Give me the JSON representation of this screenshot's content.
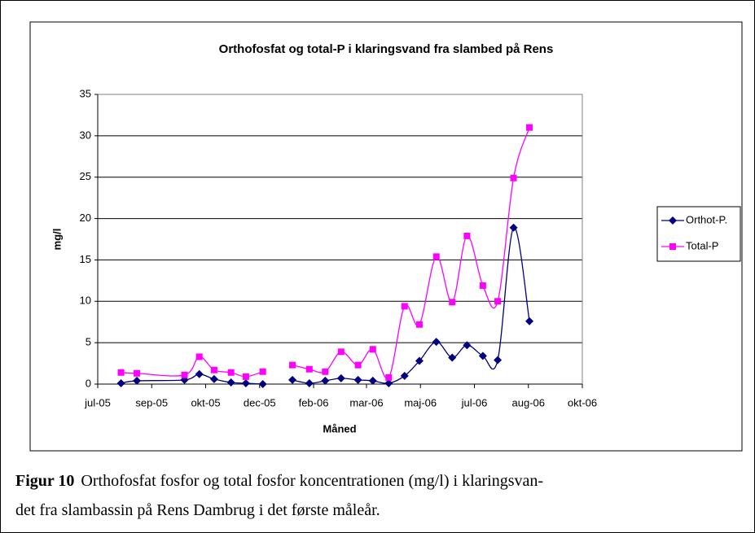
{
  "chart_data": {
    "type": "line",
    "title": "Orthofosfat og total-P i klaringsvand fra slambed på Rens",
    "x_label": "Måned",
    "y_label": "mg/l",
    "x": [
      "2005-08-11",
      "2005-08-26",
      "2005-10-10",
      "2005-10-24",
      "2005-11-07",
      "2005-11-23",
      "2005-12-07",
      "2005-12-23",
      null,
      "2006-01-20",
      "2006-02-05",
      "2006-02-20",
      "2006-03-07",
      "2006-03-23",
      "2006-04-06",
      "2006-04-21",
      "2006-05-06",
      "2006-05-20",
      "2006-06-05",
      "2006-06-20",
      "2006-07-04",
      "2006-07-19",
      "2006-08-02",
      "2006-08-17",
      "2006-09-01"
    ],
    "series": [
      {
        "name": "Orthot-P.",
        "color": "#000080",
        "marker": "diamond",
        "values": [
          0.1,
          0.4,
          0.5,
          1.2,
          0.6,
          0.2,
          0.1,
          0,
          null,
          0.5,
          0.1,
          0.4,
          0.7,
          0.5,
          0.4,
          0.1,
          1.0,
          2.8,
          5.1,
          3.2,
          4.7,
          3.4,
          2.9,
          18.9,
          7.6
        ]
      },
      {
        "name": "Total-P",
        "color": "#ff00ff",
        "marker": "square",
        "values": [
          1.4,
          1.3,
          1.1,
          3.3,
          1.7,
          1.4,
          0.9,
          1.5,
          null,
          2.3,
          1.8,
          1.5,
          3.9,
          2.3,
          4.2,
          0.8,
          9.4,
          7.2,
          15.4,
          9.9,
          17.9,
          11.9,
          10.0,
          24.9,
          31.0
        ]
      }
    ],
    "xlim": [
      "2005-07-20",
      "2006-10-21"
    ],
    "xticks": [
      {
        "value": "2005-07-20",
        "label": "jul-05"
      },
      {
        "value": "2005-09-09",
        "label": "sep-05"
      },
      {
        "value": "2005-10-30",
        "label": "okt-05"
      },
      {
        "value": "2005-12-20",
        "label": "dec-05"
      },
      {
        "value": "2006-02-09",
        "label": "feb-06"
      },
      {
        "value": "2006-03-31",
        "label": "mar-06"
      },
      {
        "value": "2006-05-21",
        "label": "maj-06"
      },
      {
        "value": "2006-07-11",
        "label": "jul-06"
      },
      {
        "value": "2006-08-31",
        "label": "aug-06"
      },
      {
        "value": "2006-10-21",
        "label": "okt-06"
      }
    ],
    "ylim": [
      0,
      35
    ],
    "yticks": [
      0,
      5,
      10,
      15,
      20,
      25,
      30,
      35
    ],
    "grid": true,
    "smooth": true,
    "legend": "right"
  },
  "caption": {
    "label": "Figur 10",
    "lines": [
      "Orthofosfat fosfor og total fosfor koncentrationen (mg/l) i klaringsvan-",
      "det fra slambassin på Rens Dambrug i det første måleår."
    ]
  }
}
